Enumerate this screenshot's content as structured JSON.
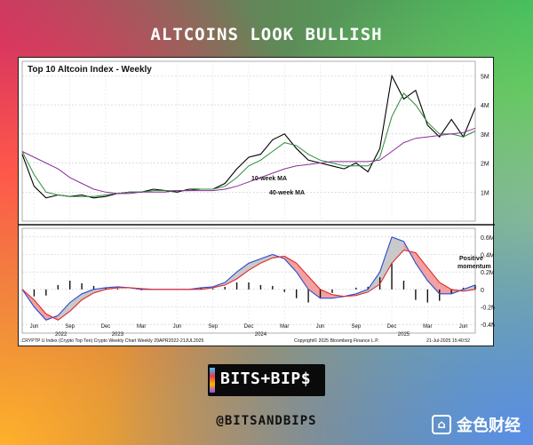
{
  "header": {
    "title": "ALTCOINS LOOK BULLISH"
  },
  "chart_data": [
    {
      "type": "line",
      "title": "Top 10 Altcoin Index - Weekly",
      "x_range": [
        "2022-05",
        "2025-07"
      ],
      "y_tick_labels": [
        "1M",
        "2M",
        "3M",
        "4M",
        "5M"
      ],
      "y_ticks": [
        1,
        2,
        3,
        4,
        5
      ],
      "ylim": [
        0,
        5.5
      ],
      "annotations": [
        "10-week MA",
        "40-week MA"
      ],
      "series": [
        {
          "name": "",
          "color": "#000000",
          "x": [
            "2022-05",
            "2022-06",
            "2022-07",
            "2022-08",
            "2022-09",
            "2022-10",
            "2022-11",
            "2022-12",
            "2023-01",
            "2023-02",
            "2023-03",
            "2023-04",
            "2023-05",
            "2023-06",
            "2023-07",
            "2023-08",
            "2023-09",
            "2023-10",
            "2023-11",
            "2023-12",
            "2024-01",
            "2024-02",
            "2024-03",
            "2024-04",
            "2024-05",
            "2024-06",
            "2024-07",
            "2024-08",
            "2024-09",
            "2024-10",
            "2024-11",
            "2024-12",
            "2025-01",
            "2025-02",
            "2025-03",
            "2025-04",
            "2025-05",
            "2025-06",
            "2025-07"
          ],
          "values": [
            2.3,
            1.2,
            0.8,
            0.9,
            0.85,
            0.9,
            0.8,
            0.85,
            0.95,
            1.0,
            1.0,
            1.1,
            1.05,
            1.0,
            1.1,
            1.1,
            1.1,
            1.3,
            1.8,
            2.2,
            2.3,
            2.8,
            3.0,
            2.5,
            2.1,
            2.0,
            1.9,
            1.8,
            2.0,
            1.7,
            2.5,
            5.0,
            4.2,
            4.5,
            3.3,
            2.9,
            3.5,
            2.9,
            3.9
          ]
        },
        {
          "name": "10-week MA",
          "color": "#2e8b3a",
          "x": [
            "2022-05",
            "2022-06",
            "2022-07",
            "2022-08",
            "2022-09",
            "2022-10",
            "2022-11",
            "2022-12",
            "2023-01",
            "2023-02",
            "2023-03",
            "2023-04",
            "2023-05",
            "2023-06",
            "2023-07",
            "2023-08",
            "2023-09",
            "2023-10",
            "2023-11",
            "2023-12",
            "2024-01",
            "2024-02",
            "2024-03",
            "2024-04",
            "2024-05",
            "2024-06",
            "2024-07",
            "2024-08",
            "2024-09",
            "2024-10",
            "2024-11",
            "2024-12",
            "2025-01",
            "2025-02",
            "2025-03",
            "2025-04",
            "2025-05",
            "2025-06",
            "2025-07"
          ],
          "values": [
            2.4,
            1.6,
            1.0,
            0.9,
            0.85,
            0.85,
            0.85,
            0.9,
            0.95,
            1.0,
            1.0,
            1.05,
            1.05,
            1.05,
            1.05,
            1.1,
            1.1,
            1.2,
            1.5,
            1.9,
            2.1,
            2.4,
            2.7,
            2.6,
            2.3,
            2.1,
            2.0,
            1.9,
            1.9,
            1.9,
            2.2,
            3.6,
            4.4,
            4.0,
            3.4,
            3.0,
            3.0,
            2.9,
            3.1
          ]
        },
        {
          "name": "40-week MA",
          "color": "#8b2f9a",
          "x": [
            "2022-05",
            "2022-06",
            "2022-07",
            "2022-08",
            "2022-09",
            "2022-10",
            "2022-11",
            "2022-12",
            "2023-01",
            "2023-02",
            "2023-03",
            "2023-04",
            "2023-05",
            "2023-06",
            "2023-07",
            "2023-08",
            "2023-09",
            "2023-10",
            "2023-11",
            "2023-12",
            "2024-01",
            "2024-02",
            "2024-03",
            "2024-04",
            "2024-05",
            "2024-06",
            "2024-07",
            "2024-08",
            "2024-09",
            "2024-10",
            "2024-11",
            "2024-12",
            "2025-01",
            "2025-02",
            "2025-03",
            "2025-04",
            "2025-05",
            "2025-06",
            "2025-07"
          ],
          "values": [
            2.4,
            2.2,
            2.0,
            1.8,
            1.5,
            1.3,
            1.1,
            1.0,
            0.95,
            0.95,
            1.0,
            1.0,
            1.0,
            1.05,
            1.05,
            1.05,
            1.05,
            1.1,
            1.2,
            1.35,
            1.5,
            1.65,
            1.8,
            1.9,
            1.95,
            2.0,
            2.05,
            2.05,
            2.05,
            2.05,
            2.1,
            2.4,
            2.7,
            2.85,
            2.9,
            2.95,
            3.0,
            3.05,
            3.2
          ]
        }
      ]
    },
    {
      "type": "line",
      "title": "",
      "y_tick_labels": [
        "0.6M",
        "0.4M",
        "0.2M",
        "0",
        "-0.2M",
        "-0.4M"
      ],
      "y_ticks": [
        0.6,
        0.4,
        0.2,
        0,
        -0.2,
        -0.4
      ],
      "ylim": [
        -0.5,
        0.7
      ],
      "annotations": [
        "Positive",
        "momentum"
      ],
      "series": [
        {
          "name": "",
          "color": "#2a4bd7",
          "x": [
            "2022-05",
            "2022-06",
            "2022-07",
            "2022-08",
            "2022-09",
            "2022-10",
            "2022-11",
            "2022-12",
            "2023-01",
            "2023-02",
            "2023-03",
            "2023-04",
            "2023-05",
            "2023-06",
            "2023-07",
            "2023-08",
            "2023-09",
            "2023-10",
            "2023-11",
            "2023-12",
            "2024-01",
            "2024-02",
            "2024-03",
            "2024-04",
            "2024-05",
            "2024-06",
            "2024-07",
            "2024-08",
            "2024-09",
            "2024-10",
            "2024-11",
            "2024-12",
            "2025-01",
            "2025-02",
            "2025-03",
            "2025-04",
            "2025-05",
            "2025-06",
            "2025-07"
          ],
          "values": [
            0.0,
            -0.2,
            -0.35,
            -0.3,
            -0.15,
            -0.05,
            0.0,
            0.02,
            0.03,
            0.02,
            0.0,
            0.0,
            0.0,
            0.0,
            0.0,
            0.02,
            0.03,
            0.08,
            0.2,
            0.3,
            0.35,
            0.4,
            0.35,
            0.2,
            0.0,
            -0.1,
            -0.1,
            -0.08,
            -0.05,
            0.0,
            0.2,
            0.6,
            0.55,
            0.3,
            0.1,
            -0.05,
            -0.05,
            0.0,
            0.05
          ]
        },
        {
          "name": "",
          "color": "#e02a2a",
          "x": [
            "2022-05",
            "2022-06",
            "2022-07",
            "2022-08",
            "2022-09",
            "2022-10",
            "2022-11",
            "2022-12",
            "2023-01",
            "2023-02",
            "2023-03",
            "2023-04",
            "2023-05",
            "2023-06",
            "2023-07",
            "2023-08",
            "2023-09",
            "2023-10",
            "2023-11",
            "2023-12",
            "2024-01",
            "2024-02",
            "2024-03",
            "2024-04",
            "2024-05",
            "2024-06",
            "2024-07",
            "2024-08",
            "2024-09",
            "2024-10",
            "2024-11",
            "2024-12",
            "2025-01",
            "2025-02",
            "2025-03",
            "2025-04",
            "2025-05",
            "2025-06",
            "2025-07"
          ],
          "values": [
            0.0,
            -0.12,
            -0.28,
            -0.35,
            -0.25,
            -0.12,
            -0.04,
            0.0,
            0.02,
            0.02,
            0.01,
            0.0,
            0.0,
            0.0,
            0.0,
            0.0,
            0.02,
            0.05,
            0.12,
            0.22,
            0.3,
            0.36,
            0.38,
            0.3,
            0.15,
            0.0,
            -0.06,
            -0.08,
            -0.07,
            -0.03,
            0.06,
            0.3,
            0.45,
            0.42,
            0.25,
            0.08,
            0.0,
            -0.02,
            0.0
          ]
        }
      ]
    }
  ],
  "axis": {
    "month_labels": [
      "Jun",
      "Sep",
      "Dec",
      "Mar",
      "Jun",
      "Sep",
      "Dec",
      "Mar",
      "Jun",
      "Sep",
      "Dec",
      "Mar",
      "Jun"
    ],
    "year_labels": [
      "2022",
      "2023",
      "2024",
      "2025"
    ]
  },
  "footer": {
    "source_left": ".CRYPTP U Index (Crypto Top Ten) Crypto Weekly Chart  Weekly 29APR2022-21JUL2025",
    "copyright": "Copyright© 2025 Bloomberg Finance L.P.",
    "timestamp": "21-Jul-2025 15:40:52"
  },
  "brand": {
    "logo_text": "BITS+BIP$",
    "handle": "@BITSANDBIPS",
    "watermark": "金色财经"
  },
  "colors": {
    "price": "#000000",
    "ma10": "#2e8b3a",
    "ma40": "#8b2f9a",
    "macd_blue": "#2a4bd7",
    "macd_red": "#e02a2a",
    "fill_gray": "#c9c9c9",
    "fill_red": "#f2a0a0"
  }
}
